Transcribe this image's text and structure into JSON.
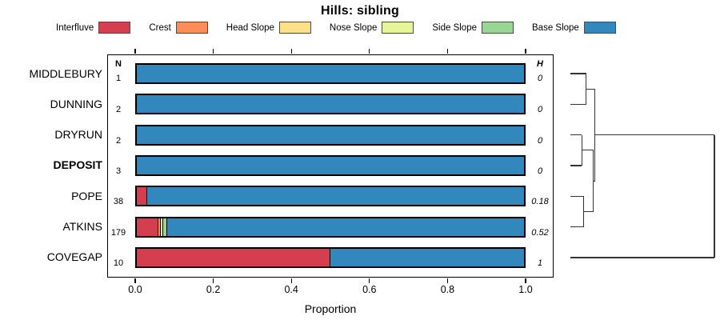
{
  "title": "Hills: sibling",
  "legend": [
    {
      "label": "Interfluve",
      "color": "#D53E4F"
    },
    {
      "label": "Crest",
      "color": "#FC8D59"
    },
    {
      "label": "Head Slope",
      "color": "#FEE08B"
    },
    {
      "label": "Nose Slope",
      "color": "#E6F598"
    },
    {
      "label": "Side Slope",
      "color": "#99D594"
    },
    {
      "label": "Base Slope",
      "color": "#3288BD"
    }
  ],
  "chart_data": {
    "type": "bar",
    "variant": "horizontal-stacked-proportion-with-dendrogram",
    "title": "Hills: sibling",
    "xlabel": "Proportion",
    "xlim": [
      0,
      1
    ],
    "xticks": [
      "0.0",
      "0.2",
      "0.4",
      "0.6",
      "0.8",
      "1.0"
    ],
    "grid": false,
    "legend_position": "top",
    "categories": [
      "MIDDLEBURY",
      "DUNNING",
      "DRYRUN",
      "DEPOSIT",
      "POPE",
      "ATKINS",
      "COVEGAP"
    ],
    "bold_categories": [
      "DEPOSIT"
    ],
    "n_column": {
      "header": "N",
      "values": [
        "1",
        "2",
        "2",
        "3",
        "38",
        "179",
        "10"
      ]
    },
    "h_column": {
      "header": "H",
      "values": [
        "0",
        "0",
        "0",
        "0",
        "0.18",
        "0.52",
        "1"
      ]
    },
    "series": [
      {
        "name": "Interfluve",
        "color": "#D53E4F",
        "values": [
          0,
          0,
          0,
          0,
          0.026,
          0.056,
          0.5
        ]
      },
      {
        "name": "Crest",
        "color": "#FC8D59",
        "values": [
          0,
          0,
          0,
          0,
          0,
          0.006,
          0
        ]
      },
      {
        "name": "Head Slope",
        "color": "#FEE08B",
        "values": [
          0,
          0,
          0,
          0,
          0,
          0.006,
          0
        ]
      },
      {
        "name": "Nose Slope",
        "color": "#E6F598",
        "values": [
          0,
          0,
          0,
          0,
          0,
          0,
          0
        ]
      },
      {
        "name": "Side Slope",
        "color": "#99D594",
        "values": [
          0,
          0,
          0,
          0,
          0,
          0.011,
          0
        ]
      },
      {
        "name": "Base Slope",
        "color": "#3288BD",
        "values": [
          1,
          1,
          1,
          1,
          0.974,
          0.921,
          0.5
        ]
      }
    ],
    "dendrogram": {
      "leaves": [
        "MIDDLEBURY",
        "DUNNING",
        "DRYRUN",
        "DEPOSIT",
        "POPE",
        "ATKINS",
        "COVEGAP"
      ],
      "height_max": 1,
      "merges": [
        {
          "id": "m1",
          "a": "MIDDLEBURY",
          "b": "DUNNING",
          "h": 0.11
        },
        {
          "id": "m2",
          "a": "DRYRUN",
          "b": "DEPOSIT",
          "h": 0.08
        },
        {
          "id": "m3",
          "a": "POPE",
          "b": "ATKINS",
          "h": 0.09
        },
        {
          "id": "m4",
          "a": "m2",
          "b": "m3",
          "h": 0.16
        },
        {
          "id": "m5",
          "a": "m1",
          "b": "m4",
          "h": 0.17
        },
        {
          "id": "m6",
          "a": "m5",
          "b": "COVEGAP",
          "h": 1
        }
      ]
    }
  }
}
